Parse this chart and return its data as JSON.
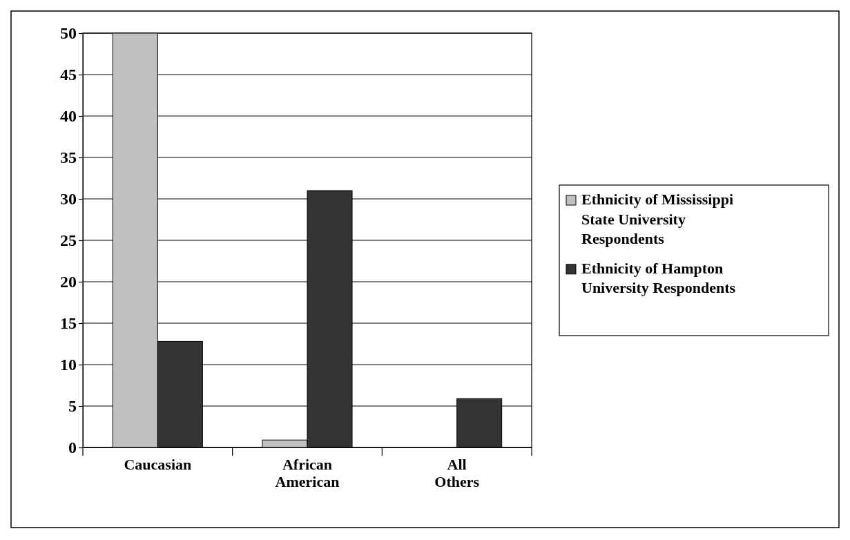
{
  "chart_data": {
    "type": "bar",
    "categories": [
      "Caucasian",
      "African American",
      "All Others"
    ],
    "series": [
      {
        "name": " Ethnicity of Mississippi State University Respondents",
        "color": "#c0c0c0",
        "values": [
          50,
          0.9,
          0
        ]
      },
      {
        "name": "Ethnicity of Hampton University Respondents",
        "color": "#333333",
        "values": [
          12.8,
          31,
          5.9
        ]
      }
    ],
    "ylim": [
      0,
      50
    ],
    "yticks": [
      0,
      5,
      10,
      15,
      20,
      25,
      30,
      35,
      40,
      45,
      50
    ],
    "grid": "y",
    "legend": "right"
  }
}
